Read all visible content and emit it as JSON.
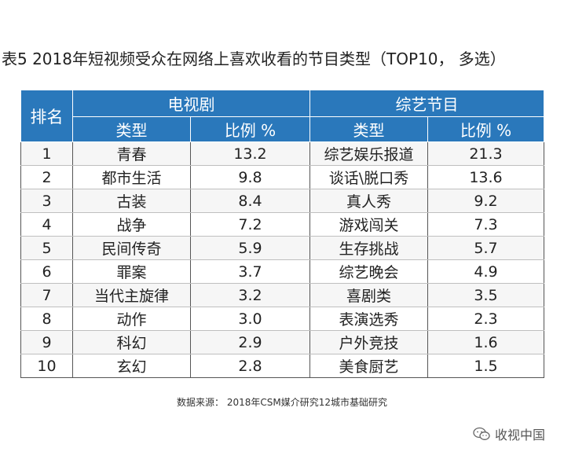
{
  "title": "表5  2018年短视频受众在网络上喜欢收看的节目类型（TOP10，  多选）",
  "table": {
    "rank_header": "排名",
    "tv_group": "电视剧",
    "variety_group": "综艺节目",
    "type_header": "类型",
    "ratio_header": "比例 %",
    "rows": [
      {
        "rank": "1",
        "tv_type": "青春",
        "tv_pct": "13.2",
        "var_type": "综艺娱乐报道",
        "var_pct": "21.3"
      },
      {
        "rank": "2",
        "tv_type": "都市生活",
        "tv_pct": "9.8",
        "var_type": "谈话\\脱口秀",
        "var_pct": "13.6"
      },
      {
        "rank": "3",
        "tv_type": "古装",
        "tv_pct": "8.4",
        "var_type": "真人秀",
        "var_pct": "9.2"
      },
      {
        "rank": "4",
        "tv_type": "战争",
        "tv_pct": "7.2",
        "var_type": "游戏闯关",
        "var_pct": "7.3"
      },
      {
        "rank": "5",
        "tv_type": "民间传奇",
        "tv_pct": "5.9",
        "var_type": "生存挑战",
        "var_pct": "5.7"
      },
      {
        "rank": "6",
        "tv_type": "罪案",
        "tv_pct": "3.7",
        "var_type": "综艺晚会",
        "var_pct": "4.9"
      },
      {
        "rank": "7",
        "tv_type": "当代主旋律",
        "tv_pct": "3.2",
        "var_type": "喜剧类",
        "var_pct": "3.5"
      },
      {
        "rank": "8",
        "tv_type": "动作",
        "tv_pct": "3.0",
        "var_type": "表演选秀",
        "var_pct": "2.3"
      },
      {
        "rank": "9",
        "tv_type": "科幻",
        "tv_pct": "2.9",
        "var_type": "户外竞技",
        "var_pct": "1.6"
      },
      {
        "rank": "10",
        "tv_type": "玄幻",
        "tv_pct": "2.8",
        "var_type": "美食厨艺",
        "var_pct": "1.5"
      }
    ]
  },
  "source": "数据来源：  2018年CSM媒介研究12城市基础研究",
  "watermark": {
    "text": "收视中国",
    "icon": "wechat-icon"
  },
  "colors": {
    "header_bg": "#2a78bb",
    "header_text": "#ffffff",
    "row_alt_bg": "#f6f6f6"
  }
}
